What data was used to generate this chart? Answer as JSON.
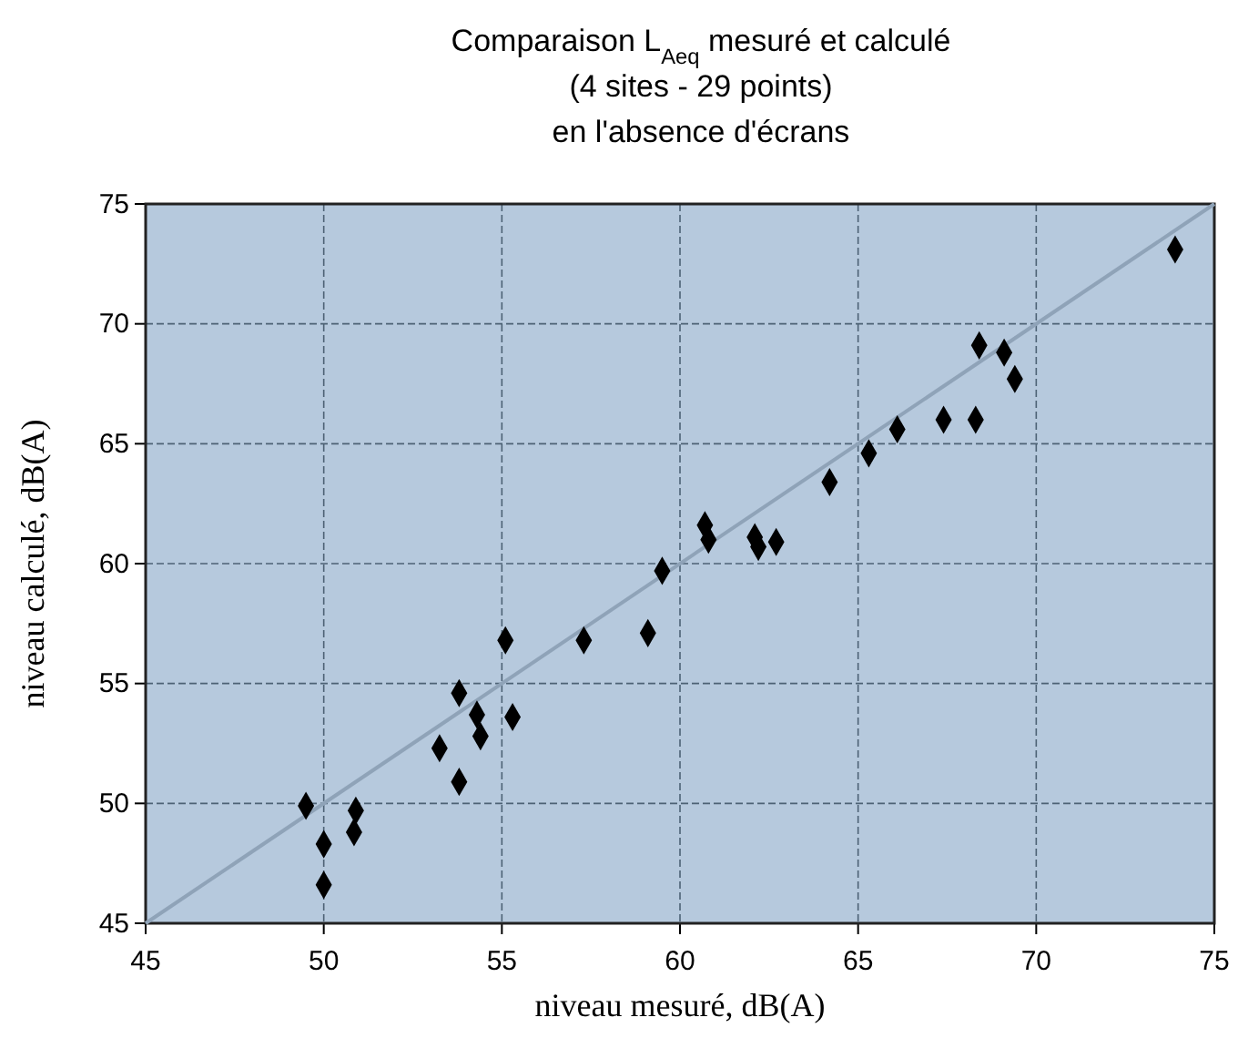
{
  "chart_data": {
    "type": "scatter",
    "title": "Comparaison L$_{Aeq}$ mesuré et calculé\n(4 sites - 29 points)\nen l'absence d'écrans",
    "xlabel": "niveau mesuré, dB(A)",
    "ylabel": "niveau calculé, dB(A)",
    "xlim": [
      45,
      75
    ],
    "xticks": [
      45,
      50,
      55,
      60,
      65,
      70,
      75
    ],
    "ylim": [
      45,
      75
    ],
    "yticks": [
      45,
      50,
      55,
      60,
      65,
      70,
      75
    ],
    "grid": true,
    "marker": "diamond",
    "series": [
      {
        "type": "line",
        "color": "#8fa3b8",
        "line_style": "solid",
        "marker": "none",
        "x": [
          45,
          75
        ],
        "values": [
          45,
          75
        ]
      },
      {
        "color": "#000000",
        "x": [
          49.5,
          50.0,
          50.0,
          50.9,
          50.85,
          53.25,
          53.8,
          53.8,
          54.3,
          54.4,
          55.1,
          55.3,
          57.3,
          59.1,
          59.5,
          60.7,
          60.8,
          62.1,
          62.2,
          62.7,
          64.2,
          65.3,
          66.1,
          67.4,
          68.3,
          68.4,
          69.1,
          69.4,
          73.9
        ],
        "values": [
          49.9,
          48.3,
          46.6,
          49.7,
          48.8,
          52.3,
          50.9,
          54.6,
          53.7,
          52.8,
          56.8,
          53.6,
          56.8,
          57.1,
          59.7,
          61.6,
          61.0,
          61.1,
          60.7,
          60.9,
          63.4,
          64.6,
          65.6,
          66.0,
          66.0,
          69.1,
          68.8,
          67.7,
          73.1
        ]
      }
    ]
  }
}
